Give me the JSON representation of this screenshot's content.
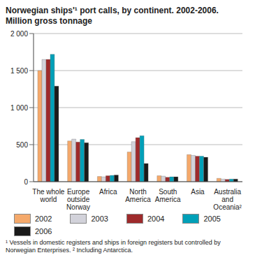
{
  "chart_data": {
    "type": "bar",
    "title": "Norwegian ships'¹ port calls, by continent. 2002-2006.",
    "subtitle": "Million gross tonnage",
    "categories": [
      "The whole world",
      "Europe outside Norway",
      "Africa",
      "North America",
      "South America",
      "Asia",
      "Australia and Oceania²"
    ],
    "series": [
      {
        "name": "2002",
        "color": "#f5a96b",
        "values": [
          1500,
          550,
          70,
          400,
          80,
          365,
          45
        ]
      },
      {
        "name": "2003",
        "color": "#d2d2da",
        "values": [
          1650,
          575,
          65,
          540,
          75,
          355,
          35
        ]
      },
      {
        "name": "2004",
        "color": "#9e2a2b",
        "values": [
          1650,
          535,
          80,
          595,
          60,
          345,
          30
        ]
      },
      {
        "name": "2005",
        "color": "#00a0b8",
        "values": [
          1720,
          570,
          85,
          620,
          65,
          345,
          35
        ]
      },
      {
        "name": "2006",
        "color": "#1a1a1a",
        "values": [
          1290,
          525,
          90,
          245,
          65,
          330,
          35
        ]
      }
    ],
    "ylim": [
      0,
      2000
    ],
    "yticks": [
      0,
      500,
      {
        "value": 1000,
        "label": "1 000"
      },
      {
        "value": 1500,
        "label": "1 500"
      },
      {
        "value": 2000,
        "label": "2 000"
      }
    ],
    "grid": true,
    "legend": "bottom",
    "footnote": "¹ Vessels in domestic registers and ships in foreign registers but controlled by Norwegian Enterprises. ² Including Antarctica."
  }
}
